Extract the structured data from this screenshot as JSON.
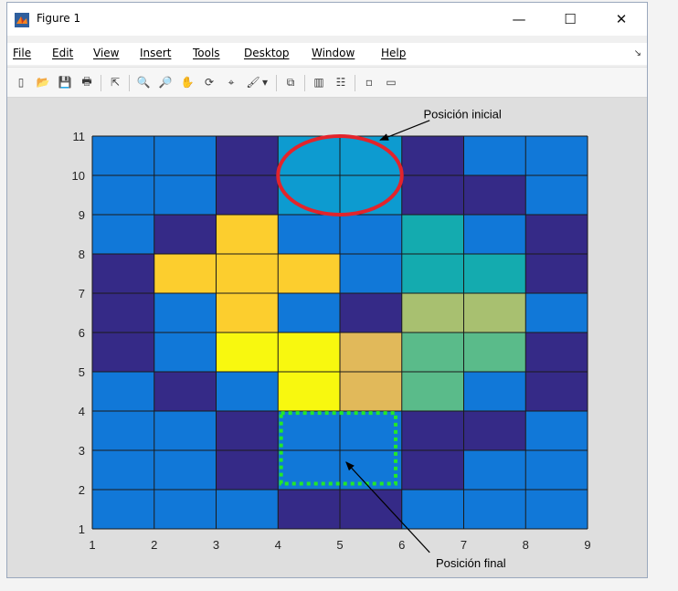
{
  "window": {
    "title": "Figure 1",
    "minimize_glyph": "—",
    "maximize_glyph": "☐",
    "close_glyph": "✕"
  },
  "menu": {
    "items": [
      "File",
      "Edit",
      "View",
      "Insert",
      "Tools",
      "Desktop",
      "Window",
      "Help"
    ],
    "extra": "↘"
  },
  "toolbar": {
    "buttons": [
      {
        "name": "new-figure-icon",
        "glyph": "▯"
      },
      {
        "name": "open-file-icon",
        "glyph": "📂"
      },
      {
        "name": "save-icon",
        "glyph": "💾"
      },
      {
        "name": "print-icon",
        "glyph": "🖶"
      },
      {
        "name": "edit-plot-pointer-icon",
        "glyph": "⇱"
      },
      {
        "name": "zoom-in-icon",
        "glyph": "🔍"
      },
      {
        "name": "zoom-out-icon",
        "glyph": "🔎"
      },
      {
        "name": "pan-hand-icon",
        "glyph": "✋"
      },
      {
        "name": "rotate-3d-icon",
        "glyph": "⟳"
      },
      {
        "name": "data-cursor-icon",
        "glyph": "⌖"
      },
      {
        "name": "brush-icon",
        "glyph": "🖌"
      },
      {
        "name": "brush-dropdown-icon",
        "glyph": "▾"
      },
      {
        "name": "link-plot-icon",
        "glyph": "⧉"
      },
      {
        "name": "colorbar-icon",
        "glyph": "▥"
      },
      {
        "name": "legend-icon",
        "glyph": "☷"
      },
      {
        "name": "hide-plot-tools-icon",
        "glyph": "▫"
      },
      {
        "name": "show-plot-tools-icon",
        "glyph": "▭"
      }
    ]
  },
  "colors": {
    "navy": "#352a87",
    "blue": "#1178d8",
    "cyan": "#0d9bd0",
    "teal": "#14abaf",
    "green": "#5abb8a",
    "olive": "#a8c070",
    "tan": "#e1b95a",
    "gold": "#fcce2e",
    "yellow": "#f8f80f",
    "grid": "#1a1a1a",
    "red_ellipse": "#e3242b",
    "green_box": "#23e828"
  },
  "chart_data": {
    "type": "heatmap",
    "x_ticks": [
      1,
      2,
      3,
      4,
      5,
      6,
      7,
      8,
      9
    ],
    "y_ticks": [
      1,
      2,
      3,
      4,
      5,
      6,
      7,
      8,
      9,
      10,
      11
    ],
    "xlim": [
      1,
      9
    ],
    "ylim": [
      1,
      11
    ],
    "grid": true,
    "cells_rows_top_to_bottom": [
      [
        "blue",
        "blue",
        "navy",
        "cyan",
        "cyan",
        "navy",
        "blue",
        "blue"
      ],
      [
        "blue",
        "blue",
        "navy",
        "cyan",
        "cyan",
        "navy",
        "navy",
        "blue"
      ],
      [
        "blue",
        "navy",
        "gold",
        "blue",
        "blue",
        "teal",
        "blue",
        "navy"
      ],
      [
        "navy",
        "gold",
        "gold",
        "gold",
        "blue",
        "teal",
        "teal",
        "navy"
      ],
      [
        "navy",
        "blue",
        "gold",
        "blue",
        "navy",
        "olive",
        "olive",
        "blue"
      ],
      [
        "navy",
        "blue",
        "yellow",
        "yellow",
        "tan",
        "green",
        "green",
        "navy"
      ],
      [
        "blue",
        "navy",
        "blue",
        "yellow",
        "tan",
        "green",
        "blue",
        "navy"
      ],
      [
        "blue",
        "blue",
        "navy",
        "blue",
        "blue",
        "navy",
        "navy",
        "blue"
      ],
      [
        "blue",
        "blue",
        "navy",
        "blue",
        "blue",
        "navy",
        "blue",
        "blue"
      ],
      [
        "blue",
        "blue",
        "blue",
        "navy",
        "navy",
        "blue",
        "blue",
        "blue"
      ]
    ],
    "annotations": [
      {
        "text": "Posición inicial",
        "target": "top region x 4–6, y 9–11",
        "marker": "red ellipse"
      },
      {
        "text": "Posición final",
        "target": "region x 4–6, y 2–4",
        "marker": "green dotted rectangle"
      }
    ]
  }
}
